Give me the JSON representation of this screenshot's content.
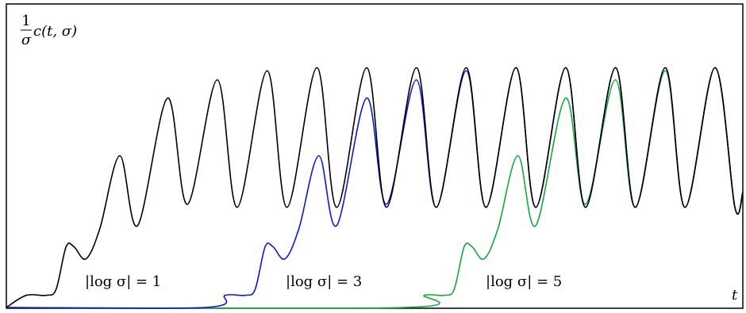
{
  "chart_data": {
    "type": "line",
    "title": "",
    "ylabel": {
      "numerator": "1",
      "denominator": "σ",
      "expression": "c(t, σ)"
    },
    "xlabel": "t",
    "xlim": [
      0,
      37
    ],
    "ylim": [
      0,
      1.0
    ],
    "grid": false,
    "legend": "none",
    "annotations": [
      {
        "text": "|log σ| = 1",
        "series": 0
      },
      {
        "text": "|log σ| = 3",
        "series": 1
      },
      {
        "text": "|log σ| = 5",
        "series": 2
      }
    ],
    "series": [
      {
        "color": "#000000",
        "points": [
          [
            0,
            0
          ],
          [
            1,
            0.04
          ],
          [
            2,
            0.04
          ],
          [
            2.5,
            0.06
          ],
          [
            3,
            0.2
          ],
          [
            3.4,
            0.2
          ],
          [
            4,
            0.16
          ],
          [
            4.7,
            0.26
          ],
          [
            5.7,
            0.5
          ],
          [
            6.6,
            0.27
          ],
          [
            8.1,
            0.69
          ],
          [
            9.1,
            0.34
          ],
          [
            10.6,
            0.75
          ],
          [
            11.6,
            0.33
          ],
          [
            13.1,
            0.78
          ],
          [
            14.1,
            0.33
          ],
          [
            15.6,
            0.79
          ],
          [
            16.6,
            0.33
          ],
          [
            18.1,
            0.79
          ],
          [
            19.1,
            0.33
          ],
          [
            20.6,
            0.79
          ],
          [
            21.6,
            0.33
          ],
          [
            23.1,
            0.79
          ],
          [
            24.1,
            0.33
          ],
          [
            25.6,
            0.79
          ],
          [
            26.6,
            0.33
          ],
          [
            28.1,
            0.79
          ],
          [
            29.1,
            0.33
          ],
          [
            30.6,
            0.79
          ],
          [
            31.6,
            0.33
          ],
          [
            33.1,
            0.79
          ],
          [
            34.1,
            0.33
          ],
          [
            35.6,
            0.79
          ],
          [
            36.6,
            0.33
          ],
          [
            37,
            0.38
          ]
        ]
      },
      {
        "color": "#0a18d6",
        "points": [
          [
            0,
            0
          ],
          [
            10,
            0
          ],
          [
            11,
            0.04
          ],
          [
            12,
            0.04
          ],
          [
            12.5,
            0.06
          ],
          [
            13,
            0.2
          ],
          [
            13.4,
            0.2
          ],
          [
            14,
            0.16
          ],
          [
            14.7,
            0.26
          ],
          [
            15.7,
            0.5
          ],
          [
            16.6,
            0.27
          ],
          [
            18.1,
            0.69
          ],
          [
            19.1,
            0.34
          ],
          [
            20.6,
            0.75
          ],
          [
            21.6,
            0.33
          ],
          [
            23.1,
            0.78
          ],
          [
            24.1,
            0.33
          ],
          [
            25.6,
            0.79
          ],
          [
            26.6,
            0.33
          ],
          [
            28.1,
            0.79
          ],
          [
            29.1,
            0.33
          ],
          [
            30.6,
            0.79
          ],
          [
            31.6,
            0.33
          ],
          [
            33.1,
            0.79
          ],
          [
            34.1,
            0.33
          ],
          [
            35.6,
            0.79
          ],
          [
            36.6,
            0.33
          ],
          [
            37,
            0.38
          ]
        ]
      },
      {
        "color": "#13a83a",
        "points": [
          [
            0,
            0
          ],
          [
            20,
            0
          ],
          [
            21,
            0.04
          ],
          [
            22,
            0.04
          ],
          [
            22.5,
            0.06
          ],
          [
            23,
            0.2
          ],
          [
            23.4,
            0.2
          ],
          [
            24,
            0.16
          ],
          [
            24.7,
            0.26
          ],
          [
            25.7,
            0.5
          ],
          [
            26.6,
            0.27
          ],
          [
            28.1,
            0.69
          ],
          [
            29.1,
            0.34
          ],
          [
            30.6,
            0.75
          ],
          [
            31.6,
            0.33
          ],
          [
            33.1,
            0.78
          ],
          [
            34.1,
            0.33
          ],
          [
            35.6,
            0.79
          ],
          [
            36.6,
            0.33
          ],
          [
            37,
            0.38
          ]
        ]
      }
    ]
  }
}
